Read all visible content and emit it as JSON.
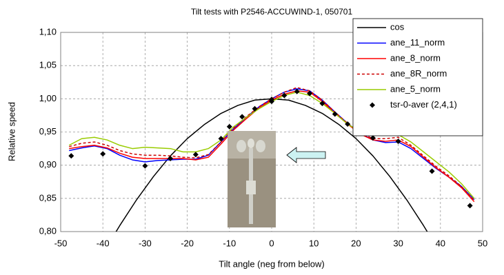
{
  "chart_data": {
    "type": "line",
    "title": "Tilt tests with P2546-ACCUWIND-1, 050701",
    "x_label": "Tilt angle (neg from below)",
    "y_label": "Relative speed",
    "xlim": [
      -50,
      50
    ],
    "ylim": [
      0.8,
      1.1
    ],
    "xticks": [
      -50,
      -40,
      -30,
      -20,
      -10,
      0,
      10,
      20,
      30,
      40,
      50
    ],
    "yticks": [
      {
        "value": 0.8,
        "label": "0,80"
      },
      {
        "value": 0.85,
        "label": "0,85"
      },
      {
        "value": 0.9,
        "label": "0,90"
      },
      {
        "value": 0.95,
        "label": "0,95"
      },
      {
        "value": 1.0,
        "label": "1,00"
      },
      {
        "value": 1.05,
        "label": "1,05"
      },
      {
        "value": 1.1,
        "label": "1,10"
      }
    ],
    "grid": true,
    "legend": "upper right",
    "series": [
      {
        "name": "cos",
        "color": "#000000",
        "x": [
          -38,
          -36,
          -32,
          -28,
          -24,
          -20,
          -16,
          -12,
          -8,
          -4,
          0,
          4,
          8,
          12,
          16,
          20,
          24,
          28,
          32,
          36,
          38
        ],
        "values": [
          0.788,
          0.809,
          0.848,
          0.883,
          0.914,
          0.94,
          0.961,
          0.978,
          0.99,
          0.998,
          1.0,
          0.998,
          0.99,
          0.978,
          0.961,
          0.94,
          0.914,
          0.883,
          0.848,
          0.809,
          0.788
        ]
      },
      {
        "name": "ane_11_norm",
        "color": "#0000ff",
        "x": [
          -48,
          -45,
          -42,
          -39,
          -36,
          -33,
          -30,
          -27,
          -24,
          -21,
          -18,
          -15,
          -12,
          -9,
          -6,
          -3,
          0,
          3,
          6,
          9,
          12,
          15,
          18,
          21,
          24,
          27,
          30,
          33,
          36,
          39,
          42,
          45,
          48
        ],
        "values": [
          0.922,
          0.926,
          0.929,
          0.925,
          0.915,
          0.908,
          0.905,
          0.907,
          0.908,
          0.909,
          0.909,
          0.915,
          0.935,
          0.955,
          0.972,
          0.988,
          1.0,
          1.01,
          1.015,
          1.012,
          0.998,
          0.98,
          0.963,
          0.948,
          0.938,
          0.934,
          0.935,
          0.925,
          0.91,
          0.895,
          0.882,
          0.868,
          0.848
        ]
      },
      {
        "name": "ane_8_norm",
        "color": "#ff0000",
        "x": [
          -48,
          -45,
          -42,
          -39,
          -36,
          -33,
          -30,
          -27,
          -24,
          -21,
          -18,
          -15,
          -12,
          -9,
          -6,
          -3,
          0,
          3,
          6,
          9,
          12,
          15,
          18,
          21,
          24,
          27,
          30,
          33,
          36,
          39,
          42,
          45,
          48
        ],
        "values": [
          0.925,
          0.928,
          0.93,
          0.926,
          0.918,
          0.912,
          0.91,
          0.91,
          0.91,
          0.91,
          0.908,
          0.912,
          0.932,
          0.953,
          0.97,
          0.986,
          0.998,
          1.007,
          1.012,
          1.01,
          0.996,
          0.978,
          0.962,
          0.947,
          0.938,
          0.936,
          0.938,
          0.928,
          0.912,
          0.896,
          0.882,
          0.866,
          0.845
        ]
      },
      {
        "name": "ane_8R_norm",
        "color": "#cc0000",
        "dash": true,
        "x": [
          -48,
          -45,
          -42,
          -39,
          -36,
          -33,
          -30,
          -27,
          -24,
          -21,
          -18,
          -15,
          -12,
          -9,
          -6,
          -3,
          0,
          3,
          6,
          9,
          12,
          15,
          18,
          21,
          24,
          27,
          30,
          33,
          36,
          39,
          42,
          45,
          48
        ],
        "values": [
          0.928,
          0.933,
          0.935,
          0.93,
          0.922,
          0.917,
          0.915,
          0.915,
          0.914,
          0.912,
          0.911,
          0.916,
          0.935,
          0.956,
          0.973,
          0.988,
          1.0,
          1.01,
          1.017,
          1.012,
          0.998,
          0.98,
          0.963,
          0.949,
          0.94,
          0.94,
          0.942,
          0.93,
          0.914,
          0.898,
          0.884,
          0.868,
          0.847
        ]
      },
      {
        "name": "ane_5_norm",
        "color": "#99cc00",
        "x": [
          -48,
          -45,
          -42,
          -39,
          -36,
          -33,
          -30,
          -27,
          -24,
          -21,
          -18,
          -15,
          -12,
          -9,
          -6,
          -3,
          0,
          3,
          6,
          9,
          12,
          15,
          18,
          21,
          24,
          27,
          30,
          33,
          36,
          39,
          42,
          45,
          48
        ],
        "values": [
          0.93,
          0.94,
          0.942,
          0.938,
          0.93,
          0.925,
          0.927,
          0.926,
          0.925,
          0.92,
          0.92,
          0.925,
          0.938,
          0.958,
          0.972,
          0.985,
          0.996,
          1.005,
          1.01,
          1.005,
          0.993,
          0.978,
          0.962,
          0.95,
          0.948,
          0.948,
          0.946,
          0.935,
          0.92,
          0.905,
          0.89,
          0.872,
          0.85
        ]
      },
      {
        "name": "tsr-0-aver (2,4,1)",
        "color": "#000000",
        "marker": "diamond",
        "x": [
          -47.5,
          -40,
          -30,
          -24,
          -18,
          -12,
          -10,
          -7,
          -4,
          0,
          0,
          3,
          6,
          9,
          12,
          15,
          18,
          24,
          30,
          38,
          47
        ],
        "values": [
          0.914,
          0.917,
          0.899,
          0.91,
          0.916,
          0.94,
          0.958,
          0.973,
          0.985,
          0.996,
          0.999,
          1.005,
          1.011,
          1.008,
          0.993,
          0.977,
          0.962,
          0.941,
          0.936,
          0.891,
          0.839
        ]
      }
    ]
  }
}
